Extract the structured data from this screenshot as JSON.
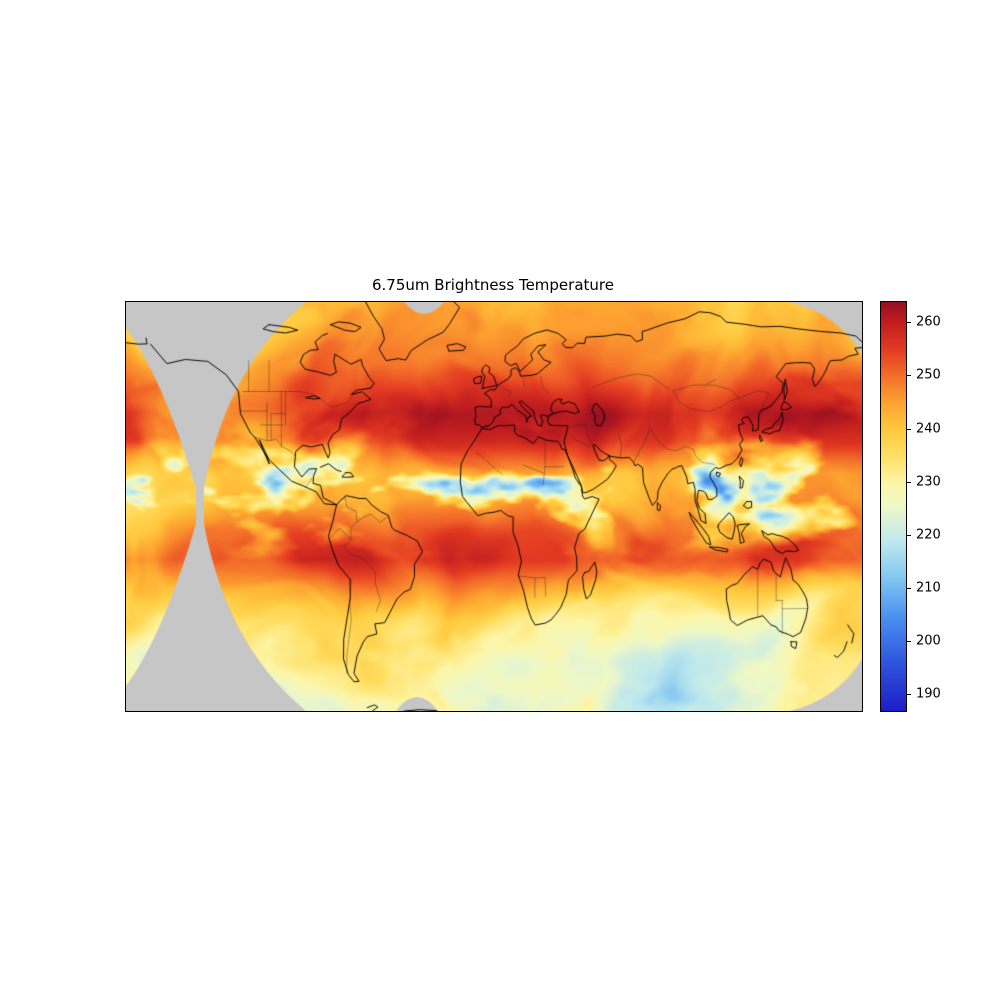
{
  "chart": {
    "title": "6.75um Brightness Temperature",
    "type": "heatmap",
    "background": "#ffffff",
    "no_data_color": "#c6c6c6",
    "colorbar": {
      "ticks": [
        260,
        250,
        240,
        230,
        220,
        210,
        200,
        190
      ],
      "vmin": 187,
      "vmax": 264
    },
    "colormap": {
      "stops": [
        [
          0.0,
          "#1e1ec8"
        ],
        [
          0.117,
          "#2f55dd"
        ],
        [
          0.234,
          "#4d93f0"
        ],
        [
          0.325,
          "#83c7f0"
        ],
        [
          0.415,
          "#bfe9ee"
        ],
        [
          0.5,
          "#eef8c9"
        ],
        [
          0.558,
          "#fdf6a8"
        ],
        [
          0.623,
          "#ffe066"
        ],
        [
          0.688,
          "#ffc93e"
        ],
        [
          0.753,
          "#fda331"
        ],
        [
          0.818,
          "#f4702a"
        ],
        [
          0.883,
          "#e43c22"
        ],
        [
          0.948,
          "#c31f1f"
        ],
        [
          1.0,
          "#950f22"
        ]
      ]
    }
  },
  "chart_data": {
    "type": "heatmap",
    "title": "6.75um Brightness Temperature",
    "colorbar_ticks": [
      260,
      250,
      240,
      230,
      220,
      210,
      200,
      190
    ],
    "value_range": [
      187,
      264
    ],
    "legend_position": "right-vertical-colorbar",
    "description": "Global geostationary-satellite composite of 6.75 micrometer (water vapor channel) brightness temperature drawn over world coastlines and country borders. Warm dark-red dry bands (~250-263) span the northern subtropics (Sahara through the Middle East and northern India) and the southern subtropics (South Pacific, South Atlantic, Australia). Cold blue convective cloud tops (~190-215) speckle the tropics along the ITCZ. Midlatitudes are pale yellow (~225-240) with swirling storm-track filaments; grey areas mark regions with no satellite coverage (corners and inter-satellite gaps).",
    "features": [
      {
        "name": "north-subtropical-dry-band",
        "approx_value": 255
      },
      {
        "name": "sahara-middle-east-maximum",
        "approx_value": 262
      },
      {
        "name": "south-subtropical-dry-band",
        "approx_value": 253
      },
      {
        "name": "itcz-convective-cold-tops",
        "approx_value": 205
      },
      {
        "name": "midlatitude-background",
        "approx_value": 232
      },
      {
        "name": "southern-ocean-swirls",
        "approx_value": 224
      },
      {
        "name": "no-satellite-coverage",
        "value": null
      }
    ]
  }
}
